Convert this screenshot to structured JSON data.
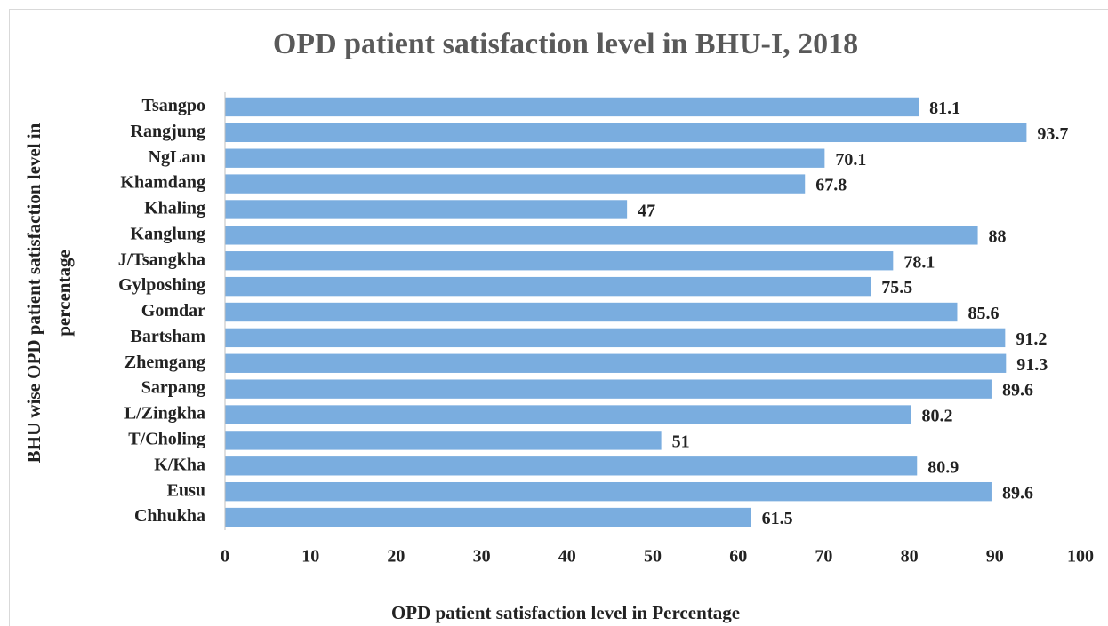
{
  "chart_data": {
    "type": "bar",
    "orientation": "horizontal",
    "title": "OPD patient satisfaction level in BHU-I, 2018",
    "x_label": "OPD patient satisfaction level in Percentage",
    "y_label": [
      "BHU wise OPD patient satisfaction level in",
      "percentage"
    ],
    "categories": [
      "Tsangpo",
      "Rangjung",
      "NgLam",
      "Khamdang",
      "Khaling",
      "Kanglung",
      "J/Tsangkha",
      "Gylposhing",
      "Gomdar",
      "Bartsham",
      "Zhemgang",
      "Sarpang",
      "L/Zingkha",
      "T/Choling",
      "K/Kha",
      "Eusu",
      "Chhukha"
    ],
    "values": [
      81.1,
      93.7,
      70.1,
      67.8,
      47,
      88,
      78.1,
      75.5,
      85.6,
      91.2,
      91.3,
      89.6,
      80.2,
      51,
      80.9,
      89.6,
      61.5
    ],
    "color": "#7aaddf",
    "xlim": [
      0,
      100
    ],
    "xticks": [
      0,
      10,
      20,
      30,
      40,
      50,
      60,
      70,
      80,
      90,
      100
    ],
    "grid": false
  }
}
